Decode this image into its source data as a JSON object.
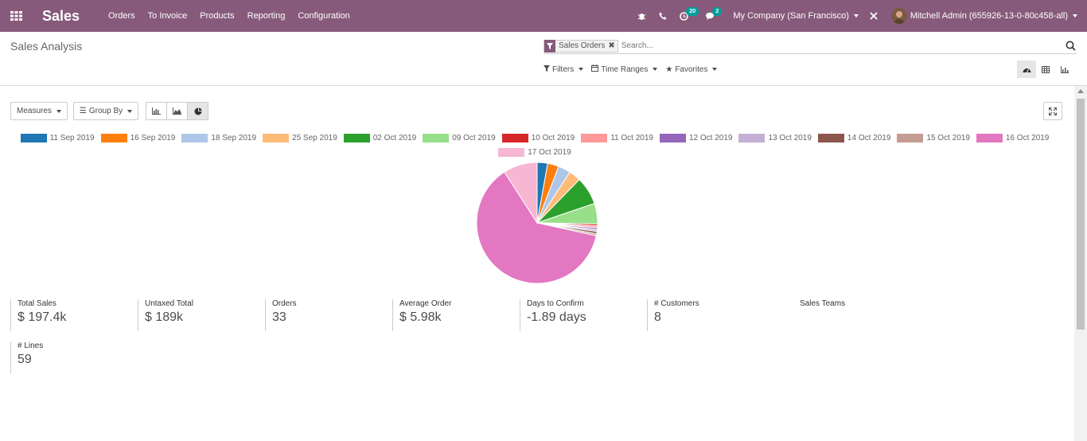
{
  "navbar": {
    "app_name": "Sales",
    "menu": [
      "Orders",
      "To Invoice",
      "Products",
      "Reporting",
      "Configuration"
    ],
    "activity_count": "20",
    "message_count": "2",
    "company": "My Company (San Francisco)",
    "user": "Mitchell Admin (655926-13-0-80c458-all)"
  },
  "control_panel": {
    "title": "Sales Analysis",
    "facet": "Sales Orders",
    "search_placeholder": "Search...",
    "filters_label": "Filters",
    "time_ranges_label": "Time Ranges",
    "favorites_label": "Favorites"
  },
  "toolbar": {
    "measures_label": "Measures",
    "group_by_label": "Group By"
  },
  "chart_data": {
    "type": "pie",
    "categories": [
      "11 Sep 2019",
      "16 Sep 2019",
      "18 Sep 2019",
      "25 Sep 2019",
      "02 Oct 2019",
      "09 Oct 2019",
      "10 Oct 2019",
      "11 Oct 2019",
      "12 Oct 2019",
      "13 Oct 2019",
      "14 Oct 2019",
      "15 Oct 2019",
      "16 Oct 2019",
      "17 Oct 2019"
    ],
    "values": [
      2.8,
      3.0,
      3.3,
      3.2,
      7.5,
      5.5,
      0.5,
      0.5,
      0.5,
      0.5,
      0.6,
      0.5,
      62.5,
      9.1
    ],
    "colors": [
      "#1f77b4",
      "#ff7f0e",
      "#aec7e8",
      "#ffbb78",
      "#2ca02c",
      "#98df8a",
      "#d62728",
      "#ff9896",
      "#9467bd",
      "#c5b0d5",
      "#8c564b",
      "#c49c94",
      "#e377c2",
      "#f7b6d2"
    ]
  },
  "kpis": [
    {
      "label": "Total Sales",
      "value": "$ 197.4k"
    },
    {
      "label": "Untaxed Total",
      "value": "$ 189k"
    },
    {
      "label": "Orders",
      "value": "33"
    },
    {
      "label": "Average Order",
      "value": "$ 5.98k"
    },
    {
      "label": "Days to Confirm",
      "value": "-1.89 days"
    },
    {
      "label": "# Customers",
      "value": "8"
    },
    {
      "label": "Sales Teams",
      "value": ""
    },
    {
      "label": "# Lines",
      "value": "59"
    }
  ]
}
